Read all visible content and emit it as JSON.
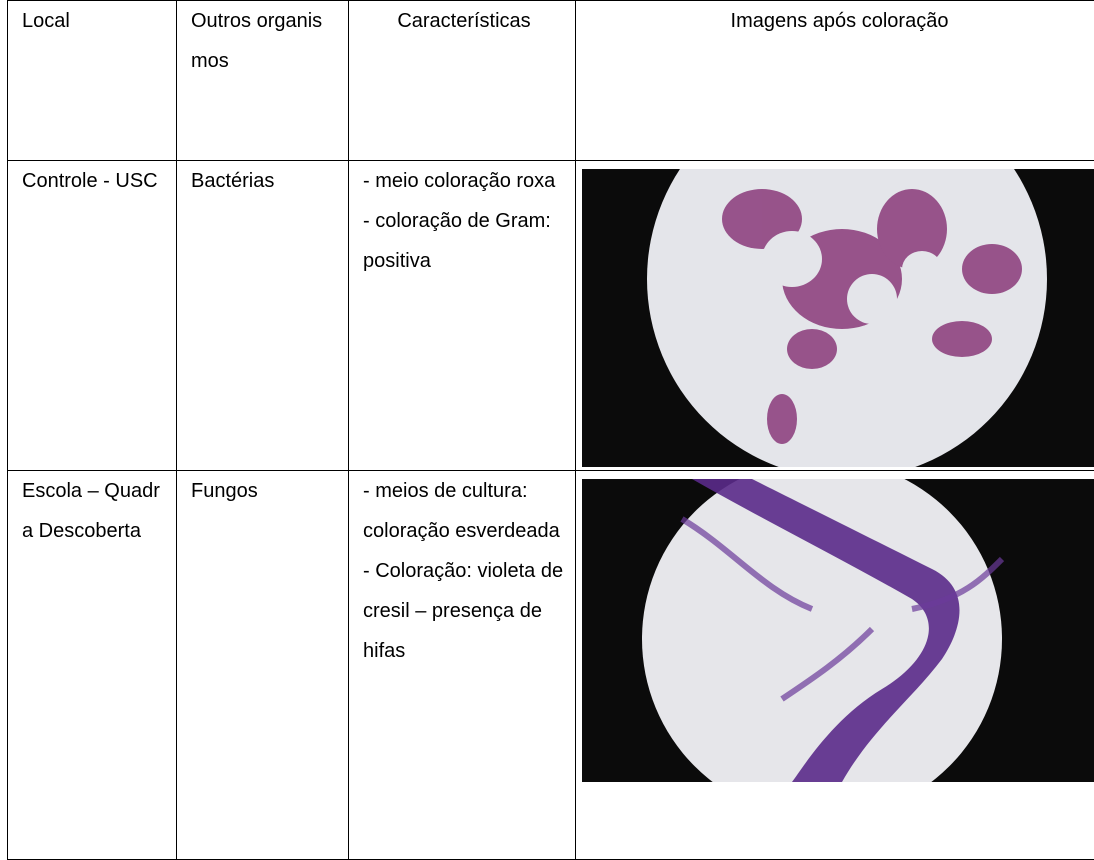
{
  "table": {
    "header": [
      "Local",
      "Outros organismos",
      "Características",
      "Imagens após coloração"
    ],
    "rows": [
      {
        "local": "Controle - USC",
        "organisms": "Bactérias",
        "characteristics": [
          "- meio coloração roxa",
          "- coloração de Gram: positiva"
        ]
      },
      {
        "local": "Escola – Quadra Descoberta",
        "organisms": "Fungos",
        "characteristics": [
          "- meios de cultura: coloração esverdeada",
          "- Coloração: violeta de cresil – presença de hifas"
        ]
      }
    ]
  }
}
